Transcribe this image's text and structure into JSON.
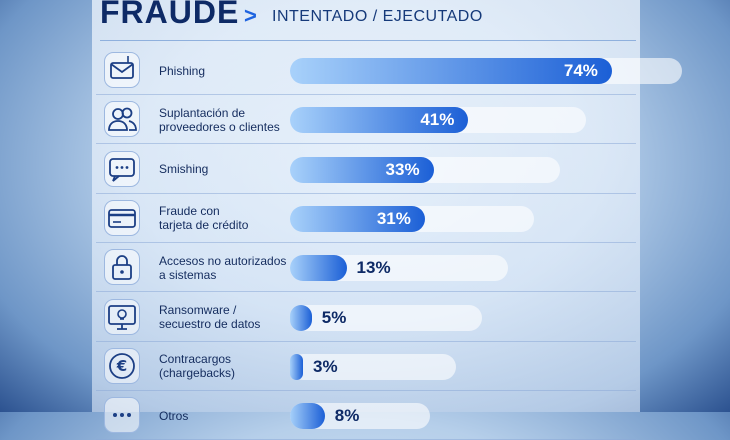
{
  "chart_data": {
    "type": "bar",
    "orientation": "horizontal",
    "title": "FRAUDE",
    "title_separator": ">",
    "subtitle": "INTENTADO / EJECUTADO",
    "categories": [
      "Phishing",
      "Suplantación de\nproveedores o clientes",
      "Smishing",
      "Fraude con\ntarjeta de crédito",
      "Accesos no autorizados\na sistemas",
      "Ransomware /\nsecuestro de datos",
      "Contracargos\n(chargebacks)",
      "Otros"
    ],
    "values": [
      74,
      41,
      33,
      31,
      13,
      5,
      3,
      8
    ],
    "value_labels": [
      "74%",
      "41%",
      "33%",
      "31%",
      "13%",
      "5%",
      "3%",
      "8%"
    ],
    "color": "#1b5fd6"
  }
}
